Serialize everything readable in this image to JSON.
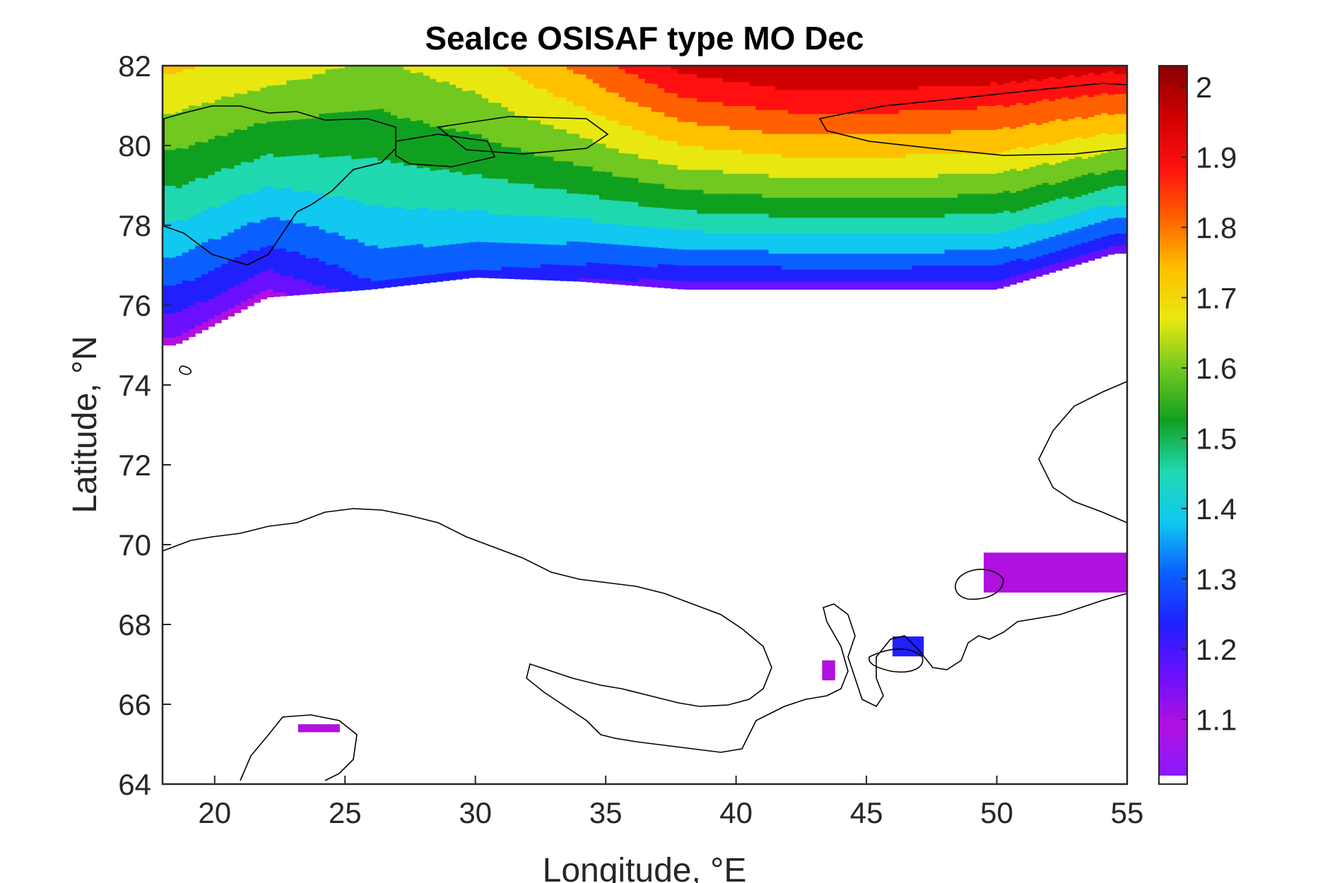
{
  "chart_data": {
    "type": "heatmap",
    "title": "SeaIce OSISAF type MO Dec",
    "xlabel": "Longitude, °E",
    "ylabel": "Latitude, °N",
    "xlim": [
      18,
      55
    ],
    "ylim": [
      64,
      82
    ],
    "xticks": [
      20,
      25,
      30,
      35,
      40,
      45,
      50,
      55
    ],
    "yticks": [
      64,
      66,
      68,
      70,
      72,
      74,
      76,
      78,
      80,
      82
    ],
    "colorbar": {
      "range": [
        1.02,
        2.03
      ],
      "ticks": [
        1.1,
        1.2,
        1.3,
        1.4,
        1.5,
        1.6,
        1.7,
        1.8,
        1.9,
        2
      ],
      "tick_labels": [
        "1.1",
        "1.2",
        "1.3",
        "1.4",
        "1.5",
        "1.6",
        "1.7",
        "1.8",
        "1.9",
        "2"
      ],
      "colormap": [
        "#8a1aff",
        "#b010e0",
        "#6a10ff",
        "#2020ff",
        "#0a60ff",
        "#10c8f0",
        "#20d8b0",
        "#10a020",
        "#70c820",
        "#e8e810",
        "#ffc000",
        "#ff6000",
        "#ff1010",
        "#d00000",
        "#8a0000"
      ],
      "bottom_swatch": "#ffffff"
    },
    "grid": false,
    "ice_zone_profile": [
      {
        "lon": 18.5,
        "lat_top": 82.0,
        "lat_edge": 75.0,
        "value_top": 1.72,
        "value_edge": 1.1
      },
      {
        "lon": 22.0,
        "lat_top": 82.0,
        "lat_edge": 76.2,
        "value_top": 1.68,
        "value_edge": 1.1
      },
      {
        "lon": 26.0,
        "lat_top": 82.0,
        "lat_edge": 76.4,
        "value_top": 1.62,
        "value_edge": 1.25
      },
      {
        "lon": 30.0,
        "lat_top": 82.0,
        "lat_edge": 76.7,
        "value_top": 1.68,
        "value_edge": 1.25
      },
      {
        "lon": 34.0,
        "lat_top": 82.0,
        "lat_edge": 76.6,
        "value_top": 1.8,
        "value_edge": 1.2
      },
      {
        "lon": 38.0,
        "lat_top": 82.0,
        "lat_edge": 76.4,
        "value_top": 1.95,
        "value_edge": 1.15
      },
      {
        "lon": 42.0,
        "lat_top": 82.0,
        "lat_edge": 76.4,
        "value_top": 2.0,
        "value_edge": 1.15
      },
      {
        "lon": 46.0,
        "lat_top": 82.0,
        "lat_edge": 76.4,
        "value_top": 2.0,
        "value_edge": 1.15
      },
      {
        "lon": 50.0,
        "lat_top": 82.0,
        "lat_edge": 76.4,
        "value_top": 1.98,
        "value_edge": 1.15
      },
      {
        "lon": 54.5,
        "lat_top": 82.0,
        "lat_edge": 77.3,
        "value_top": 1.95,
        "value_edge": 1.15
      }
    ],
    "isolated_patches": [
      {
        "lon": [
          23.2,
          24.8
        ],
        "lat": [
          65.3,
          65.5
        ],
        "value": 1.12
      },
      {
        "lon": [
          43.3,
          43.8
        ],
        "lat": [
          66.6,
          67.1
        ],
        "value": 1.12
      },
      {
        "lon": [
          46.0,
          47.2
        ],
        "lat": [
          67.2,
          67.7
        ],
        "value": 1.25
      },
      {
        "lon": [
          49.5,
          55.0
        ],
        "lat": [
          68.8,
          69.8
        ],
        "value": 1.1
      }
    ]
  }
}
